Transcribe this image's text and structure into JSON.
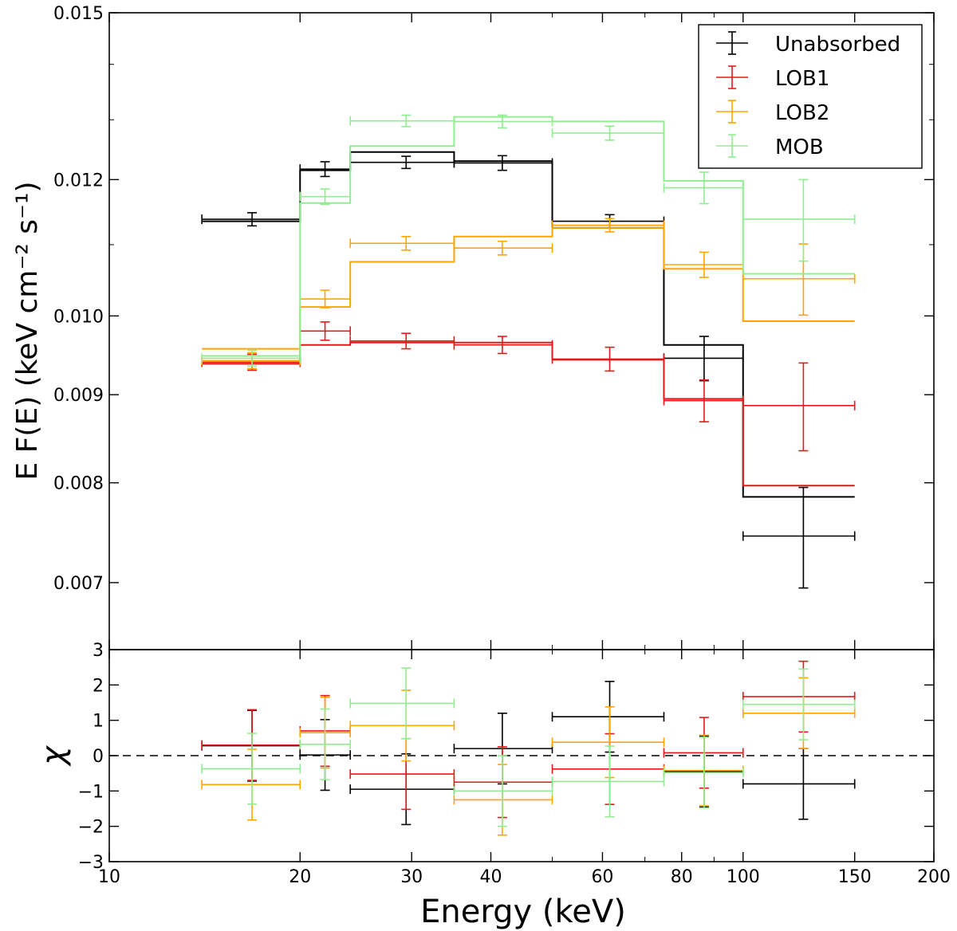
{
  "chart_data": [
    {
      "panel": "top",
      "type": "line",
      "step": true,
      "xscale": "log",
      "yscale": "log",
      "xlim": [
        10,
        200
      ],
      "ylim": [
        0.0064,
        0.015
      ],
      "ylabel": "E F(E) (keV cm⁻² s⁻¹)",
      "yticks": [
        0.007,
        0.008,
        0.009,
        0.01,
        0.012,
        0.015
      ],
      "ytick_labels": [
        "0.007",
        "0.008",
        "0.009",
        "0.010",
        "0.012",
        "0.015"
      ],
      "legend_position": "top-right",
      "bin_edges": [
        14,
        20,
        24,
        35,
        50,
        75,
        100,
        150
      ],
      "data_x": [
        16.8,
        21.9,
        29.4,
        41.7,
        61.6,
        86.8,
        124.5
      ],
      "series": [
        {
          "name": "Unabsorbed",
          "color": "#000000",
          "model": [
            0.01135,
            0.01215,
            0.01245,
            0.0123,
            0.01125,
            0.00962,
            0.00785
          ],
          "data": [
            0.01138,
            0.01217,
            0.01228,
            0.01227,
            0.01135,
            0.00945,
            0.00745
          ],
          "err": [
            0.0001,
            0.00012,
            0.0001,
            0.00012,
            0.0001,
            0.00028,
            0.0005
          ]
        },
        {
          "name": "LOB1",
          "color": "#e31a1c",
          "model": [
            0.00938,
            0.00962,
            0.00965,
            0.00965,
            0.00943,
            0.00895,
            0.00797
          ],
          "data": [
            0.0094,
            0.0098,
            0.00967,
            0.00962,
            0.00944,
            0.00893,
            0.00887
          ],
          "err": [
            0.0001,
            0.00012,
            0.0001,
            0.00011,
            0.00015,
            0.00025,
            0.00052
          ]
        },
        {
          "name": "LOB2",
          "color": "#ffa500",
          "model": [
            0.00957,
            0.01012,
            0.01075,
            0.01112,
            0.01125,
            0.01065,
            0.00993
          ],
          "data": [
            0.00942,
            0.01023,
            0.01102,
            0.01095,
            0.01129,
            0.01071,
            0.01051
          ],
          "err": [
            0.0001,
            0.00012,
            0.0001,
            0.0001,
            0.0001,
            0.00018,
            0.0005
          ]
        },
        {
          "name": "MOB",
          "color": "#90ee90",
          "model": [
            0.00948,
            0.01163,
            0.01255,
            0.01305,
            0.01297,
            0.01198,
            0.01058
          ],
          "data": [
            0.00945,
            0.01173,
            0.01298,
            0.01297,
            0.01277,
            0.01187,
            0.01138
          ],
          "err": [
            0.0001,
            0.00012,
            0.0001,
            0.00011,
            0.00012,
            0.00025,
            0.00062
          ]
        }
      ]
    },
    {
      "panel": "bottom",
      "type": "scatter",
      "xscale": "log",
      "xlim": [
        10,
        200
      ],
      "ylim": [
        -3,
        3
      ],
      "xlabel": "Energy (keV)",
      "ylabel": "χ",
      "xticks": [
        10,
        20,
        30,
        40,
        60,
        80,
        100,
        150,
        200
      ],
      "xtick_labels": [
        "10",
        "20",
        "30",
        "40",
        "60",
        "80",
        "100",
        "150",
        "200"
      ],
      "yticks": [
        -3,
        -2,
        -1,
        0,
        1,
        2,
        3
      ],
      "ytick_labels": [
        "−3",
        "−2",
        "−1",
        "0",
        "1",
        "2",
        "3"
      ],
      "zero_line": "dashed",
      "series": [
        {
          "name": "Unabsorbed",
          "color": "#000000",
          "values": [
            0.28,
            0.02,
            -0.95,
            0.2,
            1.1,
            -0.45,
            -0.8
          ]
        },
        {
          "name": "LOB1",
          "color": "#e31a1c",
          "values": [
            0.3,
            0.7,
            -0.52,
            -0.75,
            -0.38,
            0.08,
            1.67
          ]
        },
        {
          "name": "LOB2",
          "color": "#ffa500",
          "values": [
            -0.82,
            0.65,
            0.85,
            -1.25,
            0.38,
            -0.42,
            1.2
          ]
        },
        {
          "name": "MOB",
          "color": "#90ee90",
          "values": [
            -0.37,
            0.32,
            1.48,
            -1.0,
            -0.73,
            -0.48,
            1.45
          ]
        }
      ]
    }
  ]
}
